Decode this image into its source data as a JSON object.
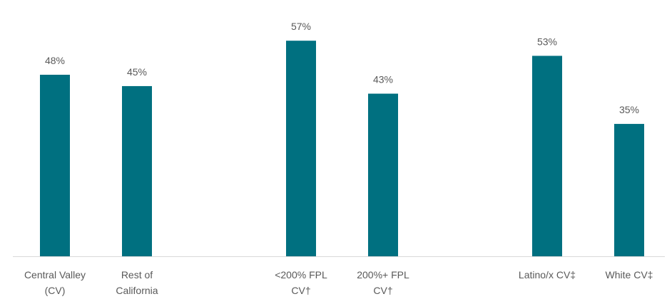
{
  "chart_data": {
    "type": "bar",
    "categories": [
      [
        "Central Valley",
        "(CV)"
      ],
      [
        "Rest of",
        "California"
      ],
      [
        "<200% FPL",
        "CV†"
      ],
      [
        "200%+ FPL",
        "CV†"
      ],
      [
        "Latino/x CV‡"
      ],
      [
        "White CV‡"
      ]
    ],
    "values": [
      48,
      45,
      57,
      43,
      53,
      35
    ],
    "value_labels": [
      "48%",
      "45%",
      "57%",
      "43%",
      "53%",
      "35%"
    ],
    "groups": [
      [
        0,
        1
      ],
      [
        2,
        3
      ],
      [
        4,
        5
      ]
    ],
    "ylim": [
      0,
      64
    ],
    "grid": false,
    "bar_color": "#007080",
    "axis_color": "#d9d9d9"
  }
}
